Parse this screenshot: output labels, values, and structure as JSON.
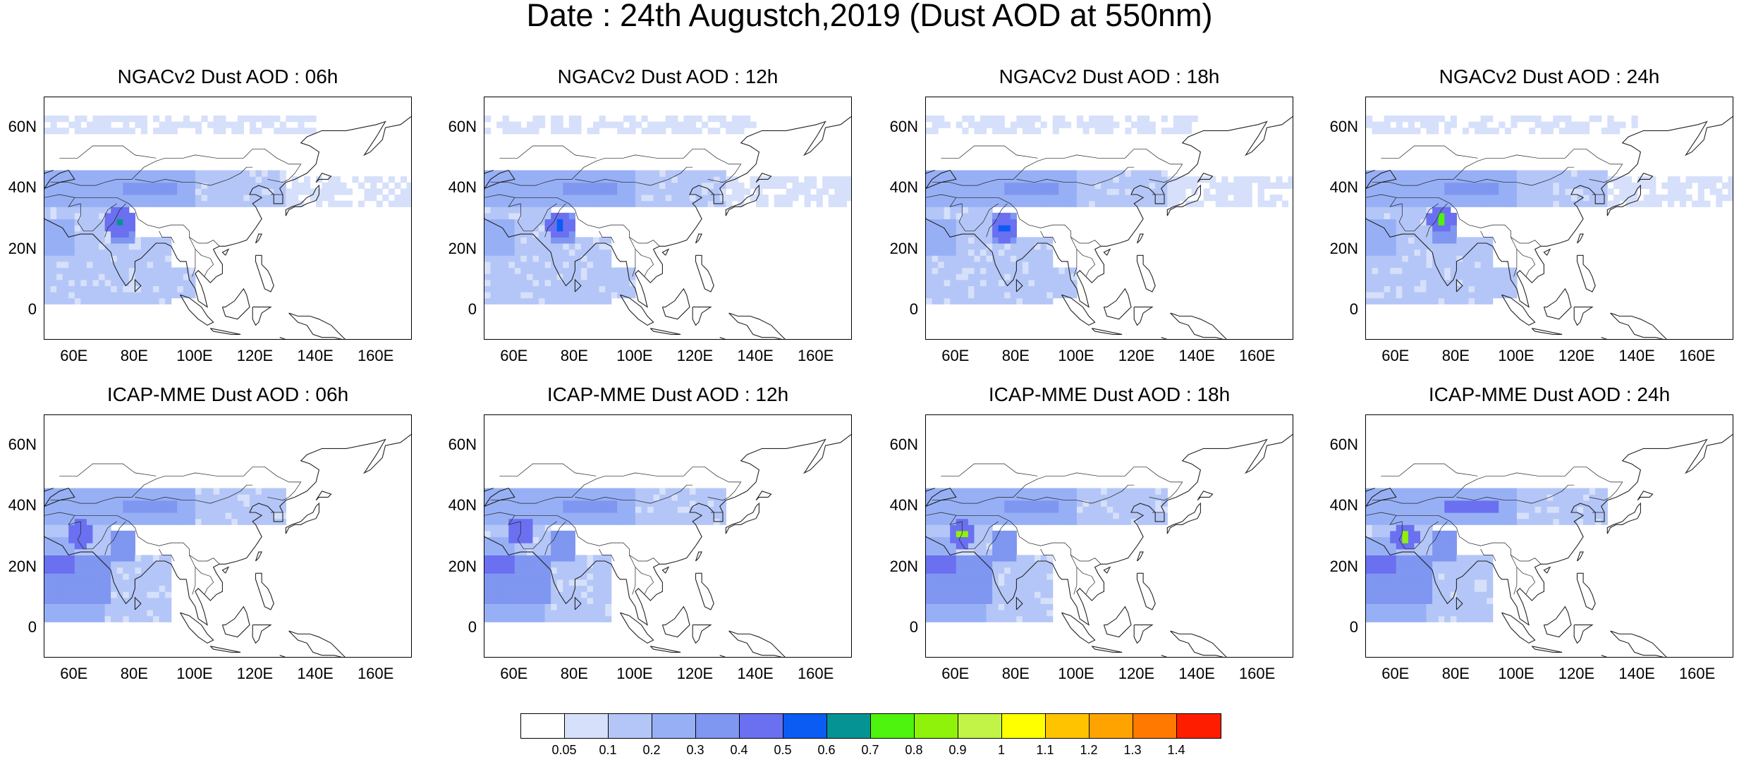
{
  "title": "Date : 24th Augustch,2019 (Dust AOD at 550nm)",
  "x_ticks": [
    "60E",
    "80E",
    "100E",
    "120E",
    "140E",
    "160E"
  ],
  "y_ticks": [
    "60N",
    "40N",
    "20N",
    "0"
  ],
  "map_extent": {
    "lon": [
      50,
      172
    ],
    "lat": [
      -10,
      70
    ]
  },
  "panels": [
    {
      "model": "NGACv2",
      "title": "NGACv2 Dust AOD : 06h",
      "hour": "06h",
      "hotspot_lon": 75,
      "hotspot_lat": 29,
      "hotspot_level": 0.6
    },
    {
      "model": "NGACv2",
      "title": "NGACv2 Dust AOD : 12h",
      "hour": "12h",
      "hotspot_lon": 75,
      "hotspot_lat": 28,
      "hotspot_level": 0.5
    },
    {
      "model": "NGACv2",
      "title": "NGACv2 Dust AOD : 18h",
      "hour": "18h",
      "hotspot_lon": 76,
      "hotspot_lat": 27,
      "hotspot_level": 0.5
    },
    {
      "model": "NGACv2",
      "title": "NGACv2 Dust AOD : 24h",
      "hour": "24h",
      "hotspot_lon": 75,
      "hotspot_lat": 30,
      "hotspot_level": 0.7
    },
    {
      "model": "ICAP-MME",
      "title": "ICAP-MME Dust AOD : 06h",
      "hour": "06h",
      "hotspot_lon": 62,
      "hotspot_lat": 31,
      "hotspot_level": 0.4
    },
    {
      "model": "ICAP-MME",
      "title": "ICAP-MME Dust AOD : 12h",
      "hour": "12h",
      "hotspot_lon": 62,
      "hotspot_lat": 32,
      "hotspot_level": 0.4
    },
    {
      "model": "ICAP-MME",
      "title": "ICAP-MME Dust AOD : 18h",
      "hour": "18h",
      "hotspot_lon": 62,
      "hotspot_lat": 31,
      "hotspot_level": 0.8
    },
    {
      "model": "ICAP-MME",
      "title": "ICAP-MME Dust AOD : 24h",
      "hour": "24h",
      "hotspot_lon": 63,
      "hotspot_lat": 30,
      "hotspot_level": 0.8
    }
  ],
  "colorbar": {
    "labels": [
      "0.05",
      "0.1",
      "0.2",
      "0.3",
      "0.4",
      "0.5",
      "0.6",
      "0.7",
      "0.8",
      "0.9",
      "1",
      "1.1",
      "1.2",
      "1.3",
      "1.4"
    ],
    "colors": [
      "#ffffff",
      "#d6e0fa",
      "#b4c6f7",
      "#97b0f5",
      "#7f97f1",
      "#6a70f0",
      "#0a5cf2",
      "#069393",
      "#4ef30e",
      "#8ff20a",
      "#c2f448",
      "#ffff00",
      "#ffc300",
      "#ffa300",
      "#ff7900",
      "#ff1d00"
    ]
  }
}
